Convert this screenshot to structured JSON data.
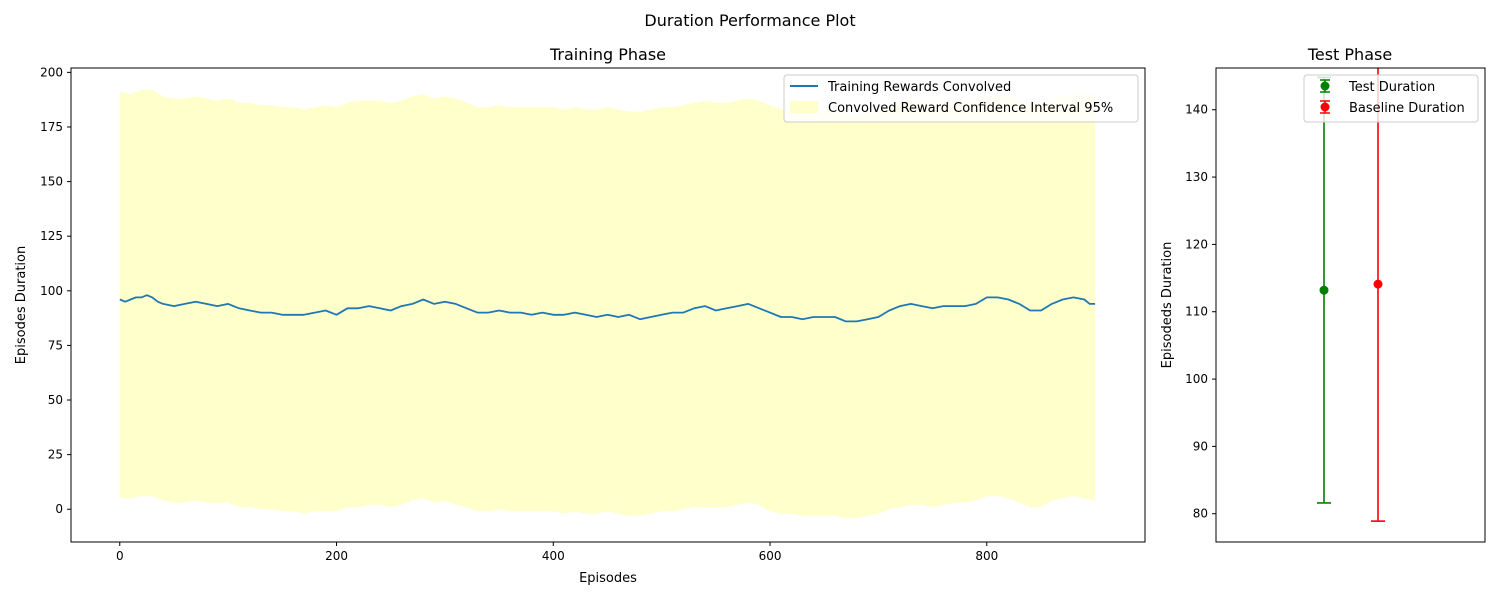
{
  "figure": {
    "suptitle": "Duration Performance Plot"
  },
  "chart_data": [
    {
      "type": "line",
      "title": "Training Phase",
      "xlabel": "Episodes",
      "ylabel": "Episodes Duration",
      "xlim": [
        -45,
        946
      ],
      "ylim": [
        -15,
        202
      ],
      "xticks": [
        0,
        200,
        400,
        600,
        800
      ],
      "yticks": [
        0,
        25,
        50,
        75,
        100,
        125,
        150,
        175,
        200
      ],
      "legend_position": "top-right",
      "series": [
        {
          "name": "Training Rewards Convolved",
          "color": "#1f77b4",
          "x": [
            0,
            5,
            10,
            15,
            20,
            25,
            30,
            35,
            40,
            50,
            60,
            70,
            80,
            90,
            100,
            110,
            120,
            130,
            140,
            150,
            160,
            170,
            180,
            190,
            200,
            210,
            220,
            230,
            240,
            250,
            260,
            270,
            280,
            290,
            300,
            310,
            320,
            330,
            340,
            350,
            360,
            370,
            380,
            390,
            400,
            410,
            420,
            430,
            440,
            450,
            460,
            470,
            480,
            490,
            500,
            510,
            520,
            530,
            540,
            550,
            560,
            570,
            580,
            590,
            600,
            610,
            620,
            630,
            640,
            650,
            660,
            670,
            680,
            690,
            700,
            710,
            720,
            730,
            740,
            750,
            760,
            770,
            780,
            790,
            800,
            810,
            820,
            830,
            840,
            850,
            860,
            870,
            880,
            890,
            895,
            900
          ],
          "y": [
            96,
            95,
            96,
            97,
            97,
            98,
            97,
            95,
            94,
            93,
            94,
            95,
            94,
            93,
            94,
            92,
            91,
            90,
            90,
            89,
            89,
            89,
            90,
            91,
            89,
            92,
            92,
            93,
            92,
            91,
            93,
            94,
            96,
            94,
            95,
            94,
            92,
            90,
            90,
            91,
            90,
            90,
            89,
            90,
            89,
            89,
            90,
            89,
            88,
            89,
            88,
            89,
            87,
            88,
            89,
            90,
            90,
            92,
            93,
            91,
            92,
            93,
            94,
            92,
            90,
            88,
            88,
            87,
            88,
            88,
            88,
            86,
            86,
            87,
            88,
            91,
            93,
            94,
            93,
            92,
            93,
            93,
            93,
            94,
            97,
            97,
            96,
            94,
            91,
            91,
            94,
            96,
            97,
            96,
            94,
            94
          ]
        },
        {
          "name": "Convolved Reward Confidence Interval 95%",
          "type": "area",
          "color": "#ffffcc",
          "x": [
            0,
            10,
            20,
            30,
            40,
            50,
            60,
            70,
            80,
            90,
            100,
            110,
            120,
            130,
            140,
            150,
            160,
            170,
            180,
            190,
            200,
            210,
            220,
            230,
            240,
            250,
            260,
            270,
            280,
            290,
            300,
            310,
            320,
            330,
            340,
            350,
            360,
            370,
            380,
            390,
            400,
            410,
            420,
            430,
            440,
            450,
            460,
            470,
            480,
            490,
            500,
            510,
            520,
            530,
            540,
            550,
            560,
            570,
            580,
            590,
            600,
            610,
            620,
            630,
            640,
            650,
            660,
            670,
            680,
            690,
            700,
            710,
            720,
            730,
            740,
            750,
            760,
            770,
            780,
            790,
            800,
            810,
            820,
            830,
            840,
            850,
            860,
            870,
            880,
            890,
            900
          ],
          "upper": [
            191,
            190,
            192,
            192,
            189,
            188,
            188,
            189,
            188,
            187,
            188,
            186,
            186,
            185,
            185,
            184,
            184,
            183,
            184,
            185,
            184,
            186,
            187,
            187,
            187,
            186,
            187,
            189,
            190,
            188,
            189,
            188,
            186,
            184,
            184,
            185,
            184,
            184,
            184,
            184,
            184,
            183,
            184,
            183,
            183,
            184,
            183,
            182,
            182,
            183,
            184,
            184,
            185,
            186,
            187,
            186,
            186,
            187,
            188,
            187,
            185,
            183,
            183,
            182,
            182,
            183,
            182,
            181,
            181,
            181,
            182,
            184,
            186,
            187,
            187,
            186,
            186,
            187,
            187,
            188,
            189,
            190,
            189,
            187,
            185,
            185,
            187,
            189,
            190,
            190,
            190
          ],
          "lower": [
            5,
            5,
            6,
            6,
            4,
            3,
            3,
            4,
            3,
            3,
            3,
            1,
            1,
            0,
            0,
            -1,
            -1,
            -2,
            -1,
            -1,
            -1,
            1,
            1,
            2,
            2,
            1,
            2,
            4,
            5,
            3,
            4,
            2,
            1,
            -1,
            -1,
            0,
            -1,
            -1,
            -1,
            -1,
            -1,
            -2,
            -1,
            -2,
            -2,
            -1,
            -2,
            -3,
            -3,
            -2,
            -1,
            -1,
            0,
            1,
            1,
            1,
            1,
            2,
            3,
            2,
            -1,
            -2,
            -2,
            -3,
            -3,
            -3,
            -3,
            -4,
            -4,
            -3,
            -2,
            0,
            1,
            2,
            2,
            1,
            2,
            3,
            3,
            4,
            6,
            6,
            5,
            3,
            1,
            1,
            4,
            5,
            6,
            5,
            4
          ]
        }
      ]
    },
    {
      "type": "errorbar",
      "title": "Test Phase",
      "xlabel": "",
      "ylabel": "Episodeds Duration",
      "ylim": [
        75.8,
        146.2
      ],
      "yticks": [
        80,
        90,
        100,
        110,
        120,
        130,
        140
      ],
      "legend_position": "top-right",
      "series": [
        {
          "name": "Test Duration",
          "color": "#008000",
          "x": 0,
          "y": 113.2,
          "lower": 81.6,
          "upper": 144.8
        },
        {
          "name": "Baseline Duration",
          "color": "#ff0000",
          "x": 1,
          "y": 114.1,
          "lower": 78.9,
          "upper": 149.3
        }
      ]
    }
  ]
}
